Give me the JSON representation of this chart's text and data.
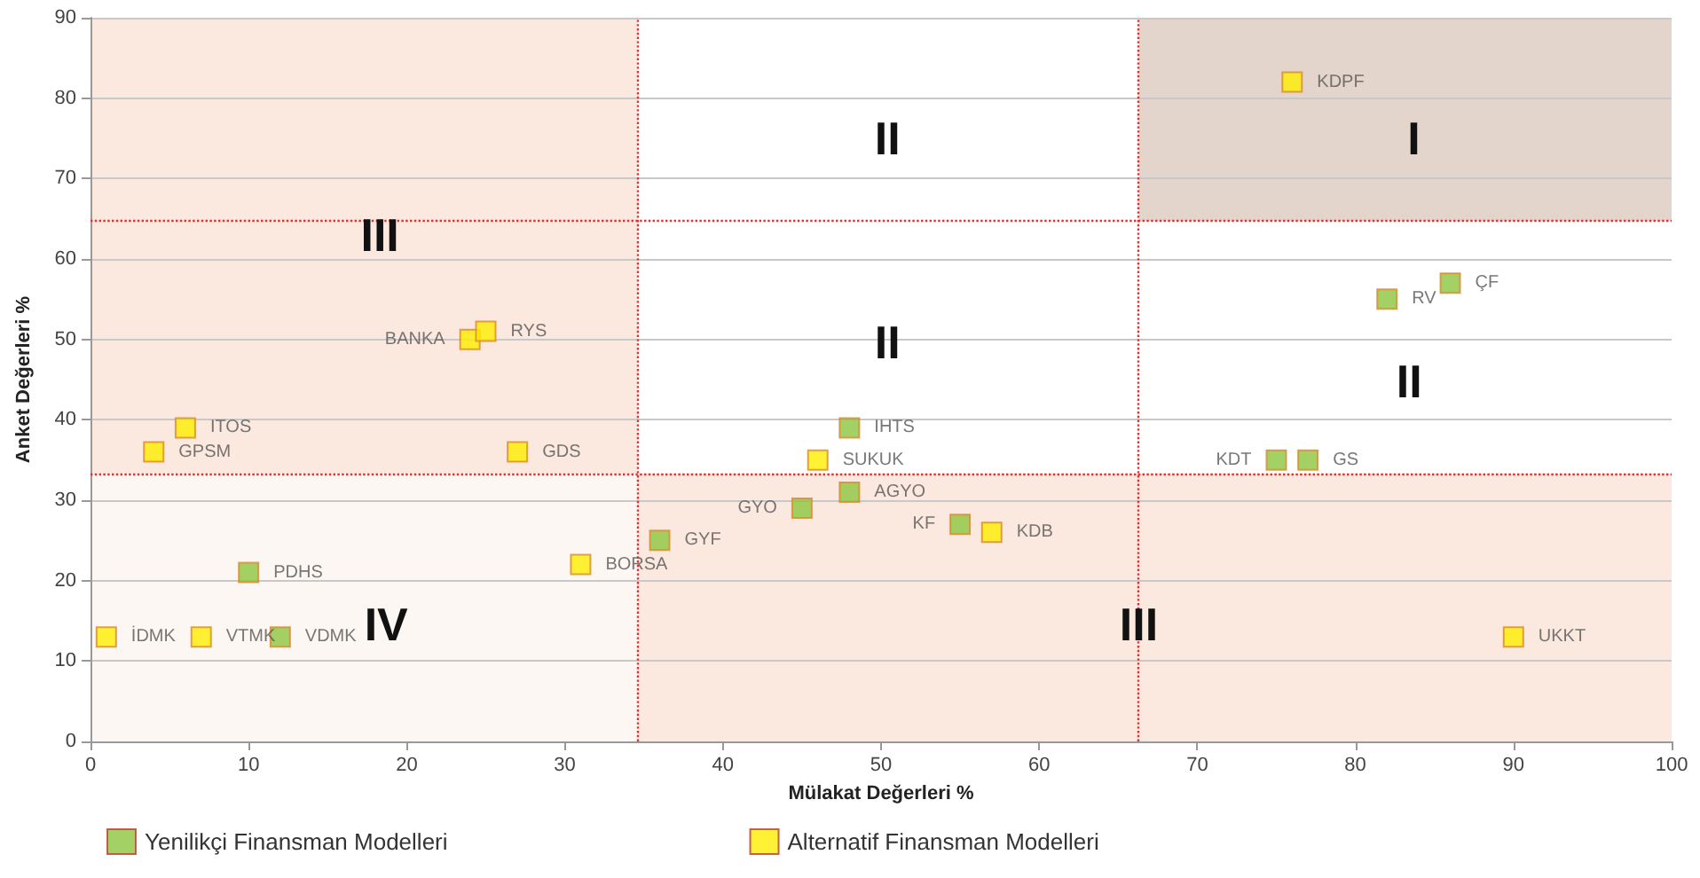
{
  "chart_data": {
    "type": "scatter",
    "xlabel": "Mülakat Değerleri %",
    "ylabel": "Anket Değerleri %",
    "xlim": [
      0,
      100
    ],
    "xticks": [
      0,
      10,
      20,
      30,
      40,
      50,
      60,
      70,
      80,
      90,
      100
    ],
    "ylim": [
      0,
      90
    ],
    "yticks": [
      0,
      10,
      20,
      30,
      40,
      50,
      60,
      70,
      80,
      90
    ],
    "grid": "y",
    "legend": "bottom",
    "marker": "square",
    "series": [
      {
        "name": "Yenilikçi Finansman Modelleri",
        "color": "#8dc63f",
        "x": [
          10,
          12,
          36,
          45,
          48,
          48,
          55,
          75,
          77,
          82,
          86
        ],
        "values": [
          21,
          13,
          25,
          29,
          31,
          39,
          27,
          35,
          35,
          55,
          57
        ],
        "value_labels": [
          "PDHS",
          "VDMK",
          "GYF",
          "GYO",
          "AGYO",
          "IHTS",
          "KF",
          "KDT",
          "GS",
          "RV",
          "ÇF"
        ]
      },
      {
        "name": "Alternatif Finansman Modelleri",
        "color": "#ffee00",
        "x": [
          1,
          7,
          4,
          6,
          24,
          25,
          27,
          31,
          46,
          57,
          90,
          76
        ],
        "values": [
          13,
          13,
          36,
          39,
          50,
          51,
          36,
          22,
          35,
          26,
          13,
          82
        ],
        "value_labels": [
          "İDMK",
          "VTMK",
          "GPSM",
          "ITOS",
          "BANKA",
          "RYS",
          "GDS",
          "BORSA",
          "SUKUK",
          "KDB",
          "UKKT",
          "KDPF"
        ]
      }
    ],
    "ref_lines": [
      {
        "axis": "x",
        "value": 34.6,
        "color": "#e03030",
        "line_style": "dotted"
      },
      {
        "axis": "x",
        "value": 66.3,
        "color": "#e03030",
        "line_style": "dotted"
      },
      {
        "axis": "y",
        "value": 33.3,
        "color": "#e03030",
        "line_style": "dotted"
      },
      {
        "axis": "y",
        "value": 64.7,
        "color": "#e03030",
        "line_style": "dotted"
      }
    ],
    "annotations": [
      "III",
      "II",
      "I",
      "II",
      "II",
      "IV",
      "III"
    ]
  }
}
